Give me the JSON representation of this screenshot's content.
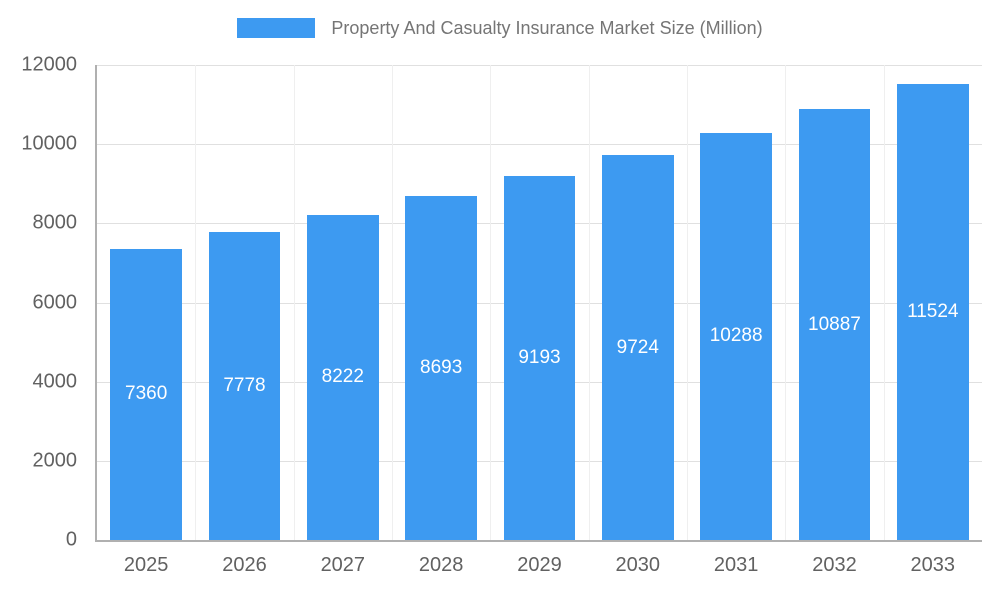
{
  "chart_data": {
    "type": "bar",
    "title": "Property And Casualty Insurance Market Size (Million)",
    "categories": [
      "2025",
      "2026",
      "2027",
      "2028",
      "2029",
      "2030",
      "2031",
      "2032",
      "2033"
    ],
    "values": [
      7360,
      7778,
      8222,
      8693,
      9193,
      9724,
      10288,
      10887,
      11524
    ],
    "xlabel": "",
    "ylabel": "",
    "ylim": [
      0,
      12000
    ],
    "yticks": [
      0,
      2000,
      4000,
      6000,
      8000,
      10000,
      12000
    ],
    "grid": true,
    "legend_position": "top",
    "bar_color": "#3d9af1",
    "value_label_color": "#ffffff",
    "axis_label_color": "#616161",
    "title_color": "#757575",
    "gridline_color": "#e0e0e0",
    "axis_line_color": "#b0b0b0"
  }
}
